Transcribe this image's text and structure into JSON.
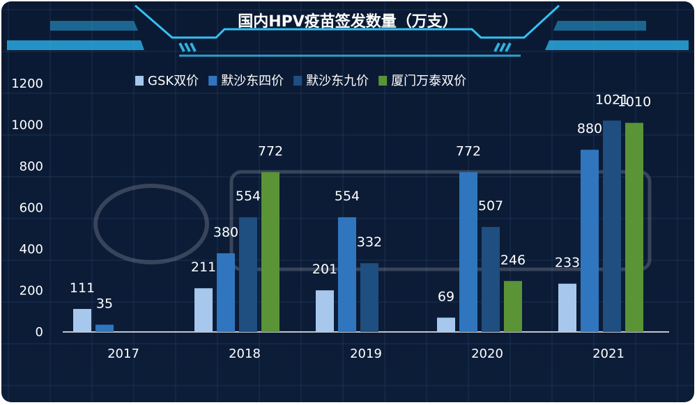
{
  "chart_data": {
    "type": "bar",
    "title": "国内HPV疫苗签发数量（万支）",
    "categories": [
      "2017",
      "2018",
      "2019",
      "2020",
      "2021"
    ],
    "series": [
      {
        "name": "GSK双价",
        "color": "#a7c8ec",
        "values": [
          111,
          211,
          201,
          69,
          233
        ]
      },
      {
        "name": "默沙东四价",
        "color": "#2f76be",
        "values": [
          35,
          380,
          554,
          772,
          880
        ]
      },
      {
        "name": "默沙东九价",
        "color": "#1f4e80",
        "values": [
          null,
          554,
          332,
          507,
          1021
        ]
      },
      {
        "name": "厦门万泰双价",
        "color": "#5a9436",
        "values": [
          null,
          772,
          null,
          246,
          1010
        ]
      }
    ],
    "ylim": [
      0,
      1200
    ],
    "yticks": [
      0,
      200,
      400,
      600,
      800,
      1000,
      1200
    ],
    "xlabel": "",
    "ylabel": "",
    "grid": true,
    "legend": "top-center"
  }
}
